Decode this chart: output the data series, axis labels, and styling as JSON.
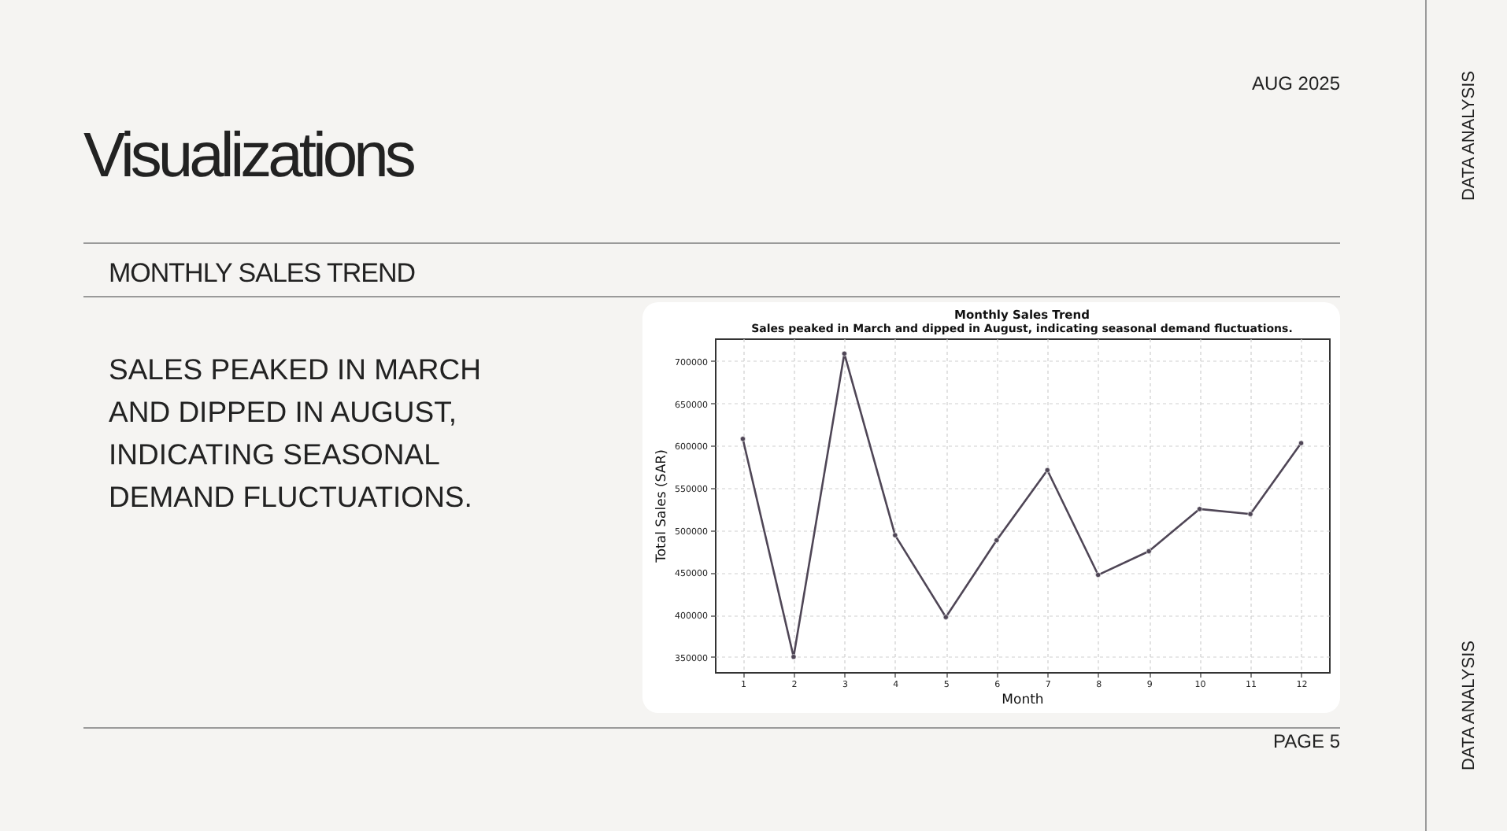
{
  "chart_data": {
    "type": "line",
    "title": "Monthly Sales Trend",
    "subtitle": "Sales peaked in March and dipped in August, indicating seasonal demand fluctuations.",
    "xlabel": "Month",
    "ylabel": "Total Sales (SAR)",
    "x": [
      1,
      2,
      3,
      4,
      5,
      6,
      7,
      8,
      9,
      10,
      11,
      12
    ],
    "series": [
      {
        "color": "#4f4656",
        "values": [
          608000,
          350000,
          709000,
          494000,
          397000,
          488000,
          571000,
          447000,
          475000,
          525000,
          519000,
          603000
        ]
      }
    ],
    "xlim": [
      0.45,
      12.55
    ],
    "xticks": [
      1,
      2,
      3,
      4,
      5,
      6,
      7,
      8,
      9,
      10,
      11,
      12
    ],
    "ylim": [
      332000,
      727000
    ],
    "yticks": [
      350000,
      400000,
      450000,
      500000,
      550000,
      600000,
      650000,
      700000
    ],
    "grid": true,
    "marker": "circle",
    "annotations": [
      "AUG 2025",
      "Visualizations",
      "MONTHLY SALES TREND",
      "SALES PEAKED IN MARCH AND DIPPED IN AUGUST, INDICATING SEASONAL DEMAND FLUCTUATIONS.",
      "PAGE 5",
      "DATA ANALYSIS",
      "DATA ANALYSIS"
    ]
  }
}
